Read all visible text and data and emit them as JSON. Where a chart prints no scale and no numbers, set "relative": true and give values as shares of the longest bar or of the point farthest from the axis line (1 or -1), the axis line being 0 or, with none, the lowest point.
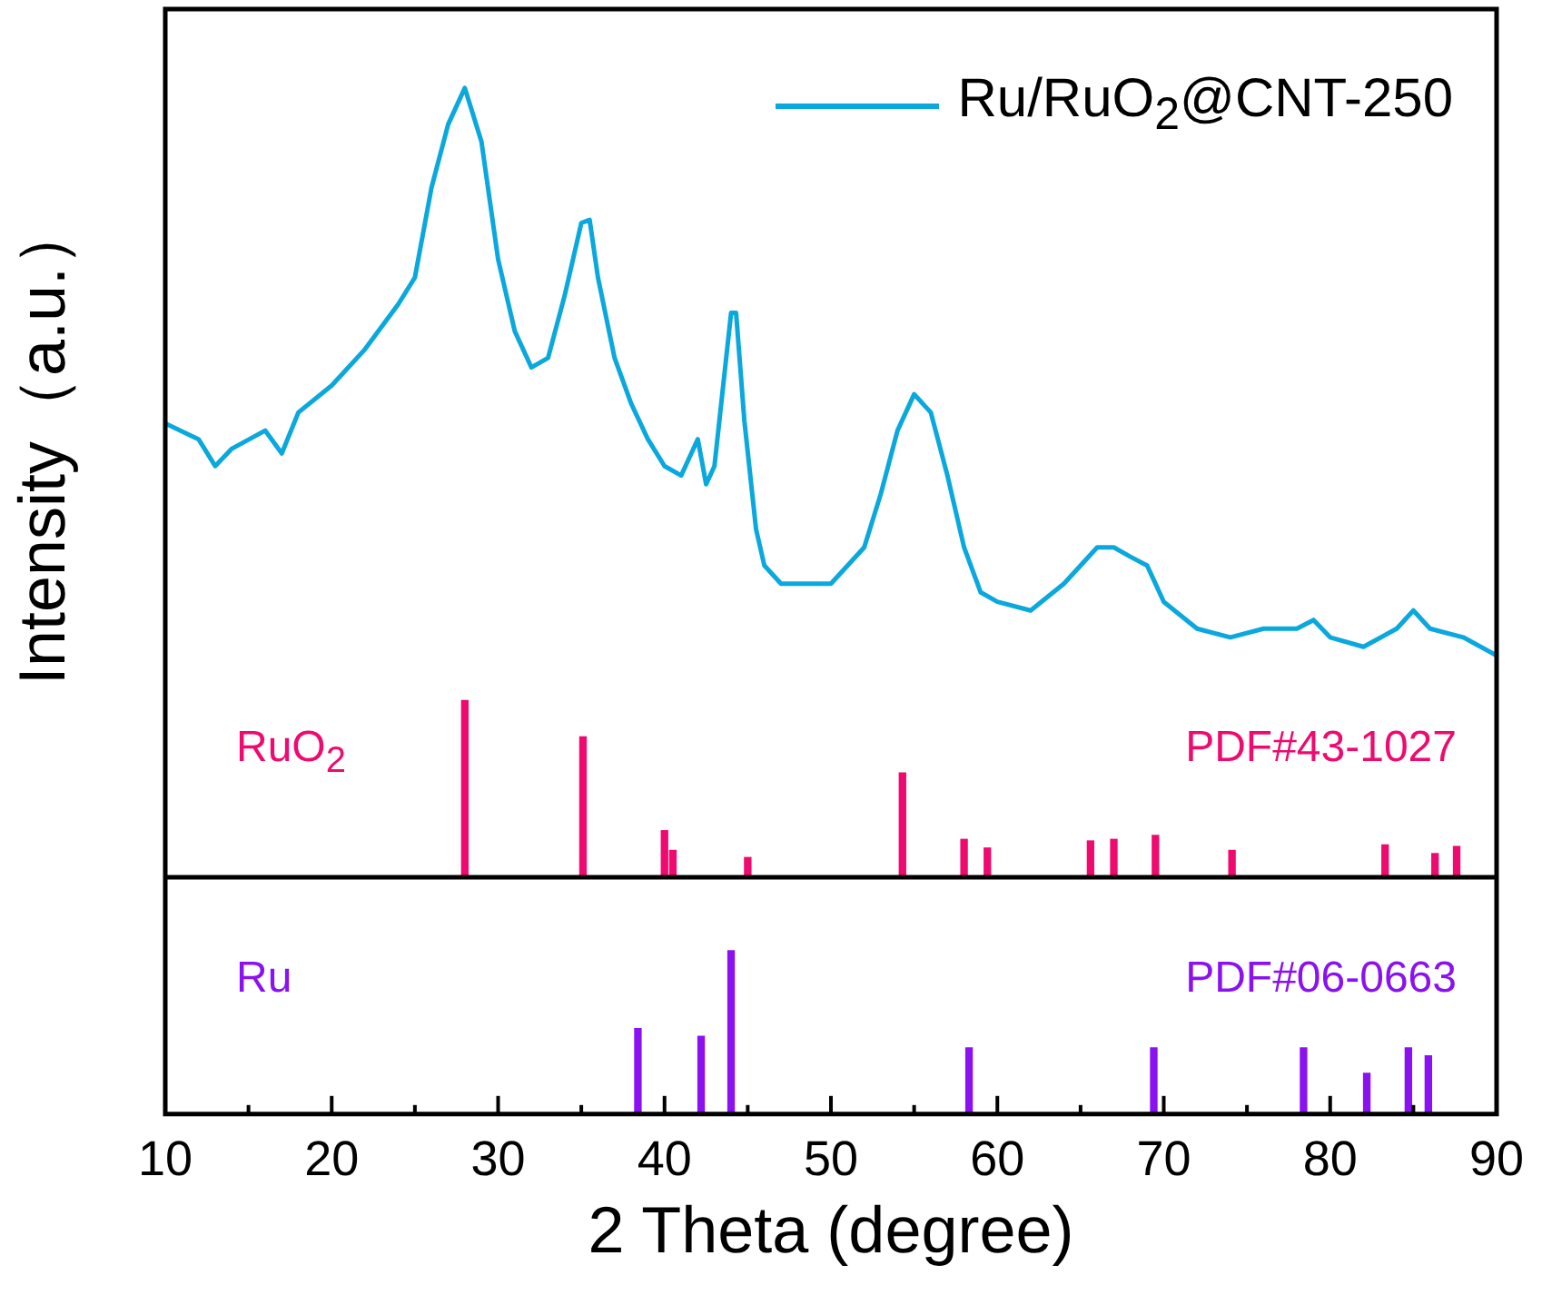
{
  "chart_data": [
    {
      "type": "line",
      "ylabel": "Intensity（a.u.）",
      "relative": true,
      "legend": "top right",
      "xlim": [
        10,
        90
      ],
      "annotations": [
        "RuO$_{2}$",
        "PDF#43-1027"
      ],
      "series": [
        {
          "type": "line",
          "name": "Ru/RuO$_{2}$@CNT-250",
          "color": "#0aa8dd",
          "x": [
            10,
            12,
            13,
            14,
            16,
            17,
            18,
            20,
            22,
            24,
            25,
            26,
            27,
            28,
            29,
            30,
            31,
            32,
            33,
            34,
            35,
            35.5,
            36,
            37,
            38,
            39,
            40,
            41,
            42,
            42.5,
            43,
            44,
            44.3,
            44.8,
            45.5,
            46,
            47,
            48,
            50,
            52,
            53,
            54,
            55,
            56,
            57,
            58,
            59,
            60,
            62,
            64,
            66,
            67,
            68,
            69,
            70,
            72,
            74,
            76,
            78,
            79,
            80,
            82,
            84,
            85,
            86,
            88,
            90
          ],
          "values": [
            0.575,
            0.555,
            0.521,
            0.543,
            0.566,
            0.537,
            0.589,
            0.623,
            0.669,
            0.726,
            0.76,
            0.874,
            0.954,
            1,
            0.932,
            0.783,
            0.692,
            0.646,
            0.658,
            0.737,
            0.829,
            0.833,
            0.76,
            0.658,
            0.6,
            0.555,
            0.521,
            0.509,
            0.555,
            0.498,
            0.521,
            0.715,
            0.715,
            0.578,
            0.441,
            0.395,
            0.372,
            0.372,
            0.372,
            0.418,
            0.486,
            0.566,
            0.612,
            0.589,
            0.509,
            0.418,
            0.361,
            0.349,
            0.338,
            0.372,
            0.418,
            0.418,
            0.406,
            0.395,
            0.349,
            0.315,
            0.304,
            0.315,
            0.315,
            0.326,
            0.304,
            0.292,
            0.315,
            0.338,
            0.315,
            0.304,
            0.281
          ]
        },
        {
          "type": "bar",
          "color": "#ee0a6e",
          "x": [
            28,
            35.1,
            40,
            40.5,
            45,
            54.3,
            58,
            59.4,
            65.6,
            67,
            69.5,
            74.1,
            83.3,
            86.3,
            87.6
          ],
          "values": [
            0.224,
            0.178,
            0.059,
            0.034,
            0.025,
            0.132,
            0.048,
            0.037,
            0.046,
            0.048,
            0.053,
            0.034,
            0.041,
            0.03,
            0.039
          ]
        }
      ]
    },
    {
      "type": "bar",
      "relative": true,
      "xlabel": "2 Theta (degree)",
      "xlim": [
        10,
        90
      ],
      "xticks": [
        10,
        {
          "value": 15,
          "label": null
        },
        20,
        {
          "value": 25,
          "label": null
        },
        30,
        {
          "value": 35,
          "label": null
        },
        40,
        {
          "value": 45,
          "label": null
        },
        50,
        {
          "value": 55,
          "label": null
        },
        60,
        {
          "value": 65,
          "label": null
        },
        70,
        {
          "value": 75,
          "label": null
        },
        80,
        {
          "value": 85,
          "label": null
        },
        90
      ],
      "annotations": [
        "Ru",
        "PDF#06-0663"
      ],
      "color": "#8a12f0",
      "x": [
        38.4,
        42.2,
        44,
        58.3,
        69.4,
        78.4,
        82.2,
        84.7,
        85.9
      ],
      "values": [
        0.524,
        0.476,
        1,
        0.405,
        0.405,
        0.405,
        0.25,
        0.405,
        0.357
      ]
    }
  ]
}
